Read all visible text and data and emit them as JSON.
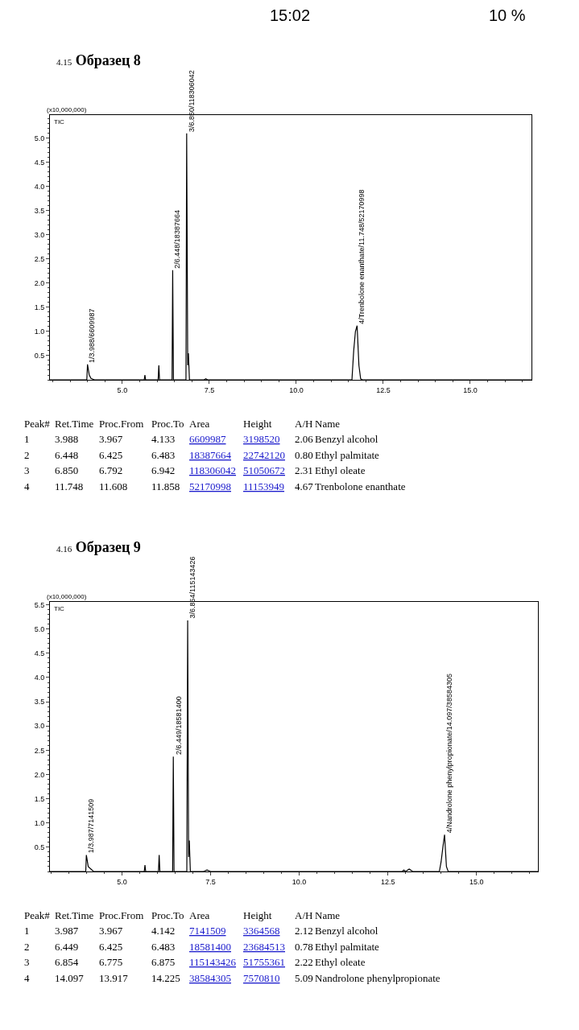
{
  "chart_data": [
    {
      "type": "line",
      "title": "4.15 Образец 8",
      "ylabel": "(x10,000,000)",
      "xlim": [
        2.92,
        16.76
      ],
      "ylim": [
        0,
        5.48
      ],
      "xticks": [
        {
          "value": 5,
          "label": "5.0"
        },
        {
          "value": 7.5,
          "label": "7.5"
        },
        {
          "value": 10,
          "label": "10.0"
        },
        {
          "value": 12.5,
          "label": "12.5"
        },
        {
          "value": 15,
          "label": "15.0"
        }
      ],
      "yticks": [
        0.5,
        {
          "value": 1,
          "label": "1.0"
        },
        1.5,
        {
          "value": 2,
          "label": "2.0"
        },
        2.5,
        {
          "value": 3,
          "label": "3.0"
        },
        3.5,
        {
          "value": 4,
          "label": "4.0"
        },
        4.5,
        {
          "value": 5,
          "label": "5.0"
        }
      ],
      "series": [
        {
          "color": "#000000",
          "x": [
            2.92,
            3.98,
            4.0,
            4.05,
            4.1,
            4.2,
            5.63,
            5.65,
            5.67,
            6.03,
            6.05,
            6.07,
            6.43,
            6.448,
            6.47,
            6.83,
            6.85,
            6.88,
            6.9,
            6.93,
            7.35,
            7.4,
            7.45,
            11.6,
            11.65,
            11.7,
            11.748,
            11.8,
            11.85,
            11.9,
            16.76
          ],
          "values": [
            0,
            0,
            0.32,
            0.1,
            0.03,
            0,
            0,
            0.1,
            0,
            0,
            0.3,
            0,
            0,
            2.27,
            0,
            0,
            5.1,
            0.3,
            0.55,
            0,
            0,
            0.02,
            0,
            0,
            0.6,
            1.0,
            1.12,
            0.3,
            0.02,
            0,
            0
          ]
        }
      ],
      "annotations": [
        "15:02",
        "10 %",
        "TIC",
        "Peak# Ret.Time Proc.From Proc.To Area Height A/H Name",
        "1 3.988 3.967 4.133 6609987 3198520 2.06 Benzyl alcohol",
        "2 6.448 6.425 6.483 18387664 22742120 0.80 Ethyl palmitate",
        "3 6.850 6.792 6.942 118306042 51050672 2.31 Ethyl oleate",
        "4 11.748 11.608 11.858 52170998 11153949 4.67 Trenbolone enanthate",
        {
          "text": "1/3.988/6609987",
          "x": 3.988,
          "y": 0.32
        },
        {
          "text": "2/6.448/18387664",
          "x": 6.448,
          "y": 2.27
        },
        {
          "text": "3/6.850/118306042",
          "x": 6.85,
          "y": 5.1
        },
        {
          "text": "4/Trenbolone enanthate/11.748/52170998",
          "x": 11.748,
          "y": 1.12
        }
      ]
    },
    {
      "type": "line",
      "title": "4.16 Образец 9",
      "ylabel": "(x10,000,000)",
      "xlim": [
        2.97,
        16.73
      ],
      "ylim": [
        0,
        5.56
      ],
      "xticks": [
        {
          "value": 5,
          "label": "5.0"
        },
        {
          "value": 7.5,
          "label": "7.5"
        },
        {
          "value": 10,
          "label": "10.0"
        },
        {
          "value": 12.5,
          "label": "12.5"
        },
        {
          "value": 15,
          "label": "15.0"
        }
      ],
      "yticks": [
        0.5,
        {
          "value": 1,
          "label": "1.0"
        },
        1.5,
        {
          "value": 2,
          "label": "2.0"
        },
        2.5,
        {
          "value": 3,
          "label": "3.0"
        },
        3.5,
        {
          "value": 4,
          "label": "4.0"
        },
        4.5,
        {
          "value": 5,
          "label": "5.0"
        },
        5.5
      ],
      "series": [
        {
          "color": "#000000",
          "x": [
            2.97,
            3.98,
            3.997,
            4.05,
            4.2,
            5.63,
            5.65,
            5.67,
            6.03,
            6.05,
            6.07,
            6.43,
            6.449,
            6.47,
            6.83,
            6.854,
            6.88,
            6.9,
            6.93,
            7.3,
            7.4,
            7.5,
            12.9,
            12.95,
            13.0,
            13.1,
            13.2,
            13.95,
            14.0,
            14.05,
            14.097,
            14.15,
            14.2,
            16.73
          ],
          "values": [
            0,
            0,
            0.34,
            0.1,
            0,
            0,
            0.13,
            0,
            0,
            0.34,
            0,
            0,
            2.37,
            0,
            0,
            5.18,
            0.3,
            0.64,
            0,
            0,
            0.03,
            0,
            0,
            0.03,
            0,
            0.05,
            0,
            0,
            0.2,
            0.5,
            0.76,
            0.1,
            0,
            0
          ]
        }
      ],
      "annotations": [
        "TIC",
        "Peak# Ret.Time Proc.From Proc.To Area Height A/H Name",
        "1 3.987 3.967 4.142 7141509 3364568 2.12 Benzyl alcohol",
        "2 6.449 6.425 6.483 18581400 23684513 0.78 Ethyl palmitate",
        "3 6.854 6.775 6.875 115143426 51755361 2.22 Ethyl oleate",
        "4 14.097 13.917 14.225 38584305 7570810 5.09 Nandrolone phenylpropionate",
        {
          "text": "1/3.987/7141509",
          "x": 3.987,
          "y": 0.34
        },
        {
          "text": "2/6.449/18581400",
          "x": 6.449,
          "y": 2.37
        },
        {
          "text": "3/6.854/115143426",
          "x": 6.854,
          "y": 5.18
        },
        {
          "text": "4/Nandrolone phenylpropionate/14.097/38584305",
          "x": 14.097,
          "y": 0.76
        }
      ]
    }
  ]
}
